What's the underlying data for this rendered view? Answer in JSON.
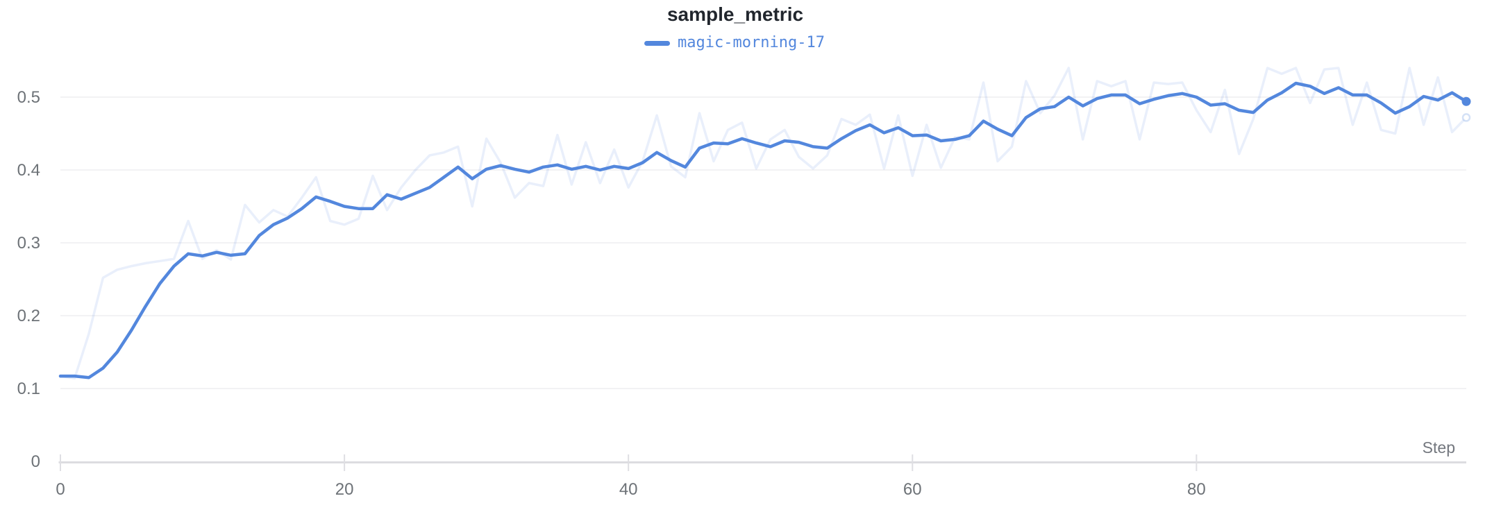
{
  "chart": {
    "title": "sample_metric",
    "legend": [
      {
        "label": "magic-morning-17",
        "color": "#5387dd"
      }
    ],
    "x_axis": {
      "label": "Step",
      "ticks": [
        "0",
        "20",
        "40",
        "60",
        "80"
      ],
      "tick_values": [
        0,
        20,
        40,
        60,
        80
      ]
    },
    "y_axis": {
      "ticks": [
        "0",
        "0.1",
        "0.2",
        "0.3",
        "0.4",
        "0.5"
      ],
      "tick_values": [
        0,
        0.1,
        0.2,
        0.3,
        0.4,
        0.5
      ]
    },
    "colors": {
      "line": "#5387dd",
      "title_text": "#21262d",
      "tick_text": "#6d7277",
      "gridline": "#ededf0",
      "axis_line": "#dcdce0",
      "background": "#ffffff"
    }
  },
  "chart_data": {
    "type": "line",
    "title": "sample_metric",
    "xlabel": "Step",
    "ylabel": "",
    "xlim": [
      0,
      99
    ],
    "ylim": [
      0,
      0.55
    ],
    "grid": "horizontal",
    "legend_position": "top-center",
    "x_start": 0,
    "x_step": 1,
    "series": [
      {
        "name": "magic-morning-17 (original)",
        "color": "#5387dd",
        "opacity": 0.13,
        "width": 3.5,
        "end_marker": "ring",
        "values": [
          0.117,
          0.114,
          0.175,
          0.252,
          0.263,
          0.268,
          0.272,
          0.275,
          0.278,
          0.33,
          0.278,
          0.29,
          0.277,
          0.352,
          0.328,
          0.345,
          0.336,
          0.362,
          0.39,
          0.33,
          0.325,
          0.333,
          0.392,
          0.345,
          0.376,
          0.4,
          0.42,
          0.424,
          0.432,
          0.35,
          0.443,
          0.41,
          0.362,
          0.382,
          0.378,
          0.448,
          0.38,
          0.438,
          0.382,
          0.428,
          0.376,
          0.412,
          0.475,
          0.405,
          0.39,
          0.478,
          0.412,
          0.455,
          0.465,
          0.402,
          0.442,
          0.455,
          0.418,
          0.402,
          0.42,
          0.47,
          0.462,
          0.476,
          0.402,
          0.475,
          0.392,
          0.462,
          0.403,
          0.445,
          0.442,
          0.52,
          0.412,
          0.432,
          0.522,
          0.478,
          0.502,
          0.54,
          0.442,
          0.522,
          0.515,
          0.522,
          0.442,
          0.52,
          0.518,
          0.52,
          0.482,
          0.452,
          0.51,
          0.422,
          0.47,
          0.54,
          0.532,
          0.54,
          0.492,
          0.538,
          0.54,
          0.462,
          0.52,
          0.455,
          0.45,
          0.54,
          0.462,
          0.527,
          0.452,
          0.472
        ]
      },
      {
        "name": "magic-morning-17",
        "color": "#5387dd",
        "opacity": 1,
        "width": 4.5,
        "end_marker": "dot",
        "values": [
          0.117,
          0.117,
          0.115,
          0.128,
          0.15,
          0.18,
          0.213,
          0.244,
          0.268,
          0.285,
          0.282,
          0.287,
          0.283,
          0.285,
          0.31,
          0.325,
          0.334,
          0.347,
          0.363,
          0.357,
          0.35,
          0.347,
          0.347,
          0.366,
          0.36,
          0.368,
          0.376,
          0.39,
          0.404,
          0.388,
          0.401,
          0.406,
          0.401,
          0.397,
          0.404,
          0.407,
          0.401,
          0.405,
          0.4,
          0.405,
          0.402,
          0.41,
          0.424,
          0.413,
          0.404,
          0.43,
          0.437,
          0.436,
          0.443,
          0.437,
          0.432,
          0.44,
          0.438,
          0.432,
          0.43,
          0.443,
          0.454,
          0.462,
          0.451,
          0.458,
          0.447,
          0.448,
          0.44,
          0.442,
          0.447,
          0.467,
          0.456,
          0.447,
          0.472,
          0.484,
          0.487,
          0.5,
          0.488,
          0.498,
          0.503,
          0.503,
          0.491,
          0.497,
          0.502,
          0.505,
          0.5,
          0.489,
          0.491,
          0.482,
          0.479,
          0.496,
          0.506,
          0.519,
          0.515,
          0.505,
          0.513,
          0.503,
          0.503,
          0.492,
          0.478,
          0.487,
          0.501,
          0.496,
          0.506,
          0.494
        ]
      }
    ]
  }
}
